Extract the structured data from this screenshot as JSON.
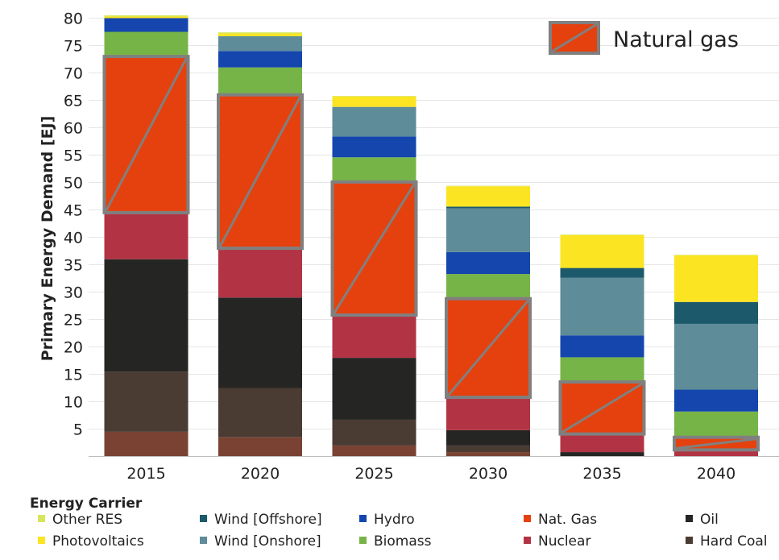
{
  "chart_data": {
    "type": "bar",
    "stacked": true,
    "ylabel": "Primary Energy Demand [EJ]",
    "ylim": [
      0,
      82
    ],
    "yticks": [
      5,
      10,
      15,
      20,
      25,
      30,
      35,
      40,
      45,
      50,
      55,
      60,
      65,
      70,
      75,
      80
    ],
    "grid": true,
    "categories": [
      "2015",
      "2020",
      "2025",
      "2030",
      "2035",
      "2040"
    ],
    "series": [
      {
        "name": "Hard Coal",
        "color": "#7a4233",
        "values": [
          4.5,
          3.5,
          2.0,
          0.8,
          0.0,
          0.0
        ]
      },
      {
        "name": "Hard Coal",
        "color": "#4a3b33",
        "values": [
          11.0,
          9.0,
          4.7,
          1.2,
          0.0,
          0.0
        ]
      },
      {
        "name": "Oil",
        "color": "#252624",
        "values": [
          20.5,
          16.5,
          11.3,
          2.8,
          0.8,
          0.0
        ]
      },
      {
        "name": "Nuclear",
        "color": "#b23444",
        "values": [
          8.5,
          9.0,
          7.8,
          6.0,
          3.3,
          1.2
        ]
      },
      {
        "name": "Nat. Gas",
        "color": "#e5410f",
        "values": [
          28.5,
          28.0,
          24.3,
          18.0,
          9.5,
          2.3
        ]
      },
      {
        "name": "Biomass",
        "color": "#77b447",
        "values": [
          4.5,
          5.0,
          4.5,
          4.5,
          4.5,
          4.7
        ]
      },
      {
        "name": "Hydro",
        "color": "#1446ad",
        "values": [
          2.5,
          3.0,
          3.8,
          4.0,
          4.0,
          4.0
        ]
      },
      {
        "name": "Wind [Onshore]",
        "color": "#5e8c98",
        "values": [
          0.0,
          2.7,
          5.4,
          8.0,
          10.5,
          12.0
        ]
      },
      {
        "name": "Wind [Offshore]",
        "color": "#1c5a6b",
        "values": [
          0.0,
          0.0,
          0.0,
          0.3,
          1.8,
          4.0
        ]
      },
      {
        "name": "Photovoltaics",
        "color": "#fbe522",
        "values": [
          0.3,
          0.5,
          1.9,
          3.7,
          6.0,
          8.5
        ]
      },
      {
        "name": "Other RES",
        "color": "#d7e55a",
        "values": [
          0.2,
          0.2,
          0.1,
          0.1,
          0.1,
          0.1
        ]
      }
    ],
    "highlight": {
      "series": "Nat. Gas",
      "label": "Natural gas",
      "color": "#e5410f",
      "border_color": "#808080"
    },
    "legend": {
      "title": "Energy Carrier",
      "position": "bottom",
      "entries": [
        {
          "label": "Other RES",
          "color": "#d7e55a"
        },
        {
          "label": "Photovoltaics",
          "color": "#fbe522"
        },
        {
          "label": "Wind [Offshore]",
          "color": "#1c5a6b"
        },
        {
          "label": "Wind [Onshore]",
          "color": "#5e8c98"
        },
        {
          "label": "Hydro",
          "color": "#1446ad"
        },
        {
          "label": "Biomass",
          "color": "#77b447"
        },
        {
          "label": "Nat. Gas",
          "color": "#e5410f"
        },
        {
          "label": "Nuclear",
          "color": "#b23444"
        },
        {
          "label": "Oil",
          "color": "#252624"
        },
        {
          "label": "Hard Coal",
          "color": "#4a3b33"
        }
      ]
    }
  }
}
